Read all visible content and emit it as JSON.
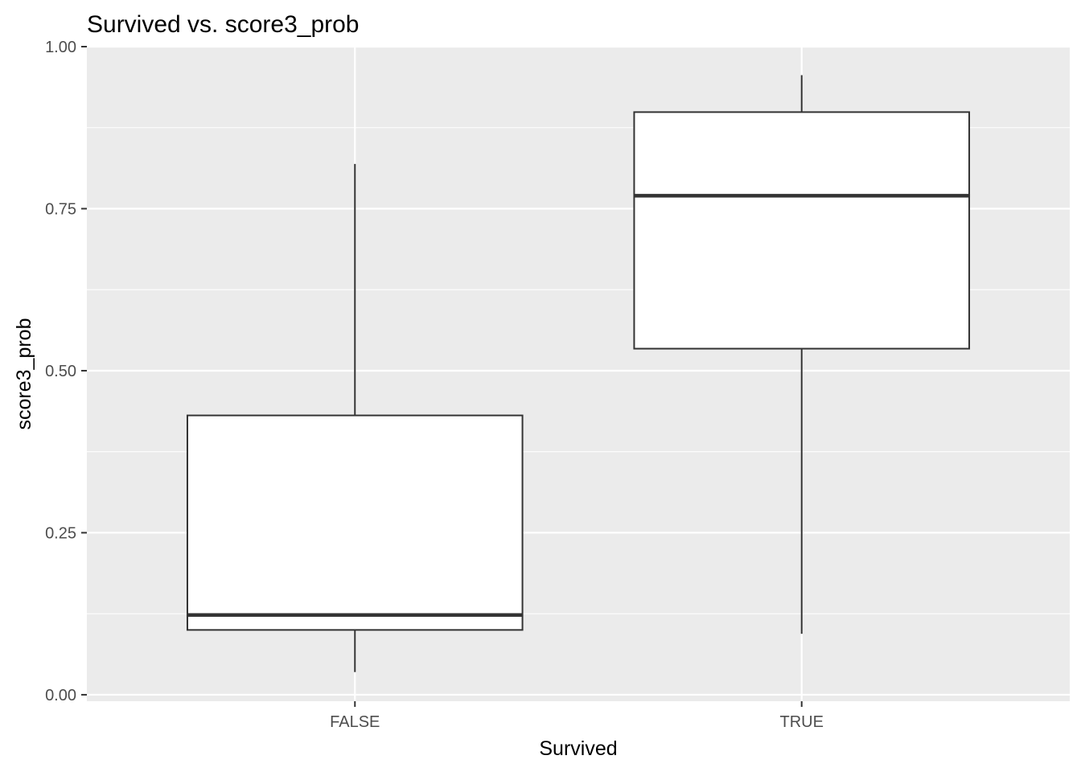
{
  "chart_data": {
    "type": "boxplot",
    "title": "Survived vs. score3_prob",
    "xlabel": "Survived",
    "ylabel": "score3_prob",
    "categories": [
      "FALSE",
      "TRUE"
    ],
    "boxes": [
      {
        "category": "FALSE",
        "whisker_low": 0.035,
        "q1": 0.1,
        "median": 0.123,
        "q3": 0.431,
        "whisker_high": 0.819
      },
      {
        "category": "TRUE",
        "whisker_low": 0.094,
        "q1": 0.534,
        "median": 0.77,
        "q3": 0.899,
        "whisker_high": 0.956
      }
    ],
    "ylim": [
      -0.01,
      1.0
    ],
    "y_ticks": [
      0.0,
      0.25,
      0.5,
      0.75,
      1.0
    ],
    "y_tick_labels": [
      "0.00",
      "0.25",
      "0.50",
      "0.75",
      "1.00"
    ],
    "y_minor_ticks": [
      0.125,
      0.375,
      0.625,
      0.875
    ],
    "grid": true,
    "colors": {
      "panel_background": "#ebebeb",
      "grid_line": "#ffffff",
      "box_fill": "#ffffff",
      "box_line": "#333333",
      "tick_mark": "#333333",
      "tick_label": "#4d4d4d",
      "text": "#000000"
    }
  }
}
